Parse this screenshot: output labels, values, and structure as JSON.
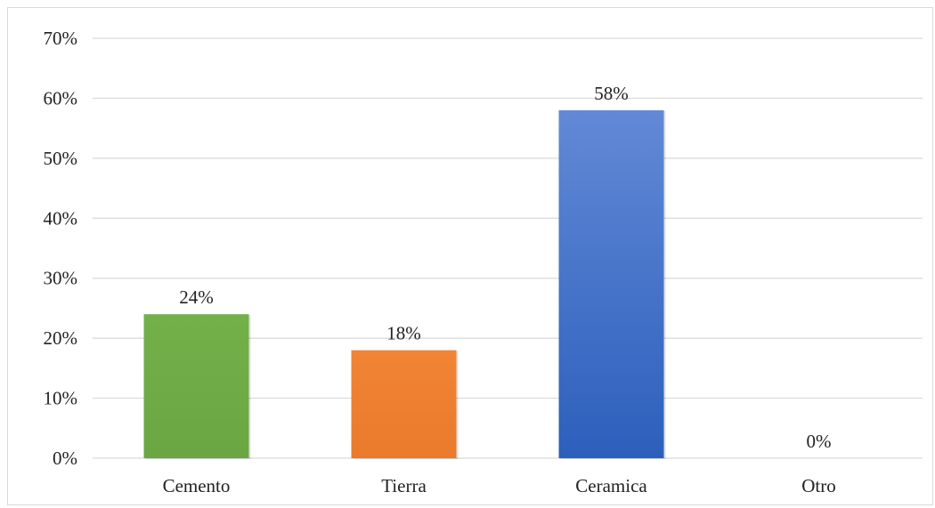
{
  "chart_data": {
    "type": "bar",
    "title": "",
    "xlabel": "",
    "ylabel": "",
    "categories": [
      "Cemento",
      "Tierra",
      "Ceramica",
      "Otro"
    ],
    "values": [
      24,
      18,
      58,
      0
    ],
    "value_labels": [
      "24%",
      "18%",
      "58%",
      "0%"
    ],
    "y_ticks": [
      0,
      10,
      20,
      30,
      40,
      50,
      60,
      70
    ],
    "y_tick_labels": [
      "0%",
      "10%",
      "20%",
      "30%",
      "40%",
      "50%",
      "60%",
      "70%"
    ],
    "ylim": [
      0,
      70
    ],
    "grid": true,
    "legend": "none",
    "colors": {
      "Cemento": [
        "#74b04a",
        "#6aa642"
      ],
      "Tierra": [
        "#f28436",
        "#ea7a2c"
      ],
      "Ceramica": [
        "#6289d6",
        "#2c5fbc"
      ],
      "Otro": [
        "#bfbfbf",
        "#bfbfbf"
      ]
    },
    "grid_color": "#d9d9d9"
  }
}
